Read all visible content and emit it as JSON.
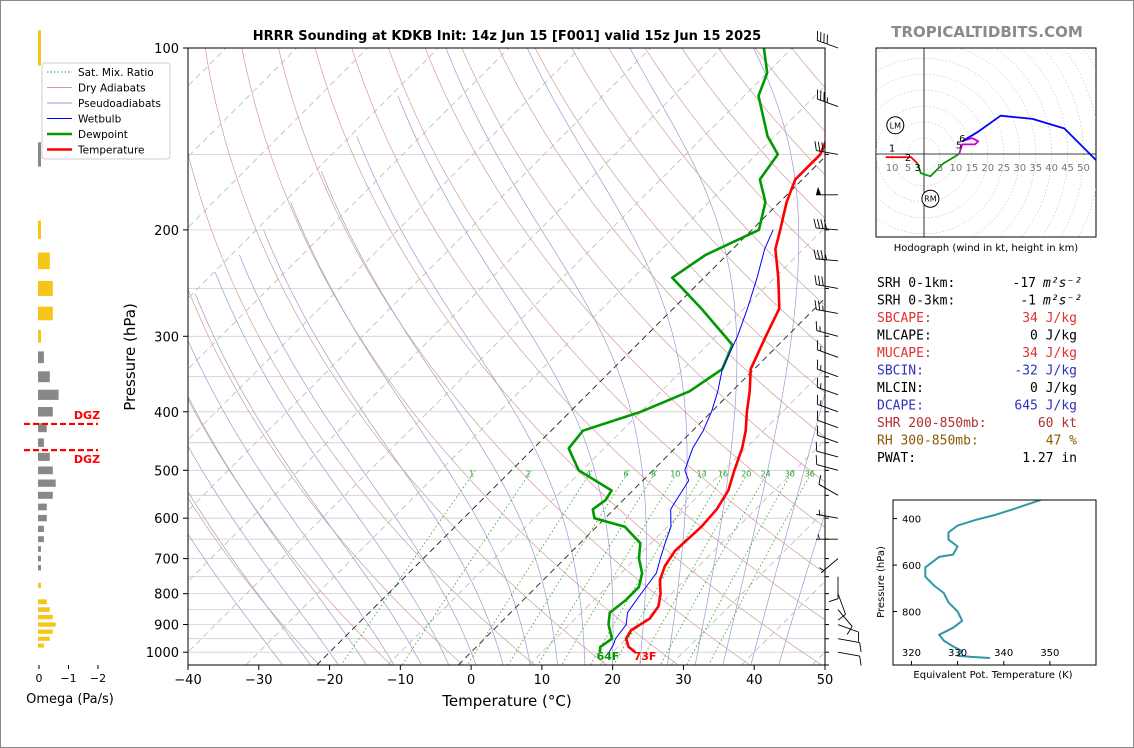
{
  "title": "HRRR Sounding at KDKB Init: 14z Jun 15 [F001] valid 15z Jun 15 2025",
  "brand": "TROPICALTIDBITS.COM",
  "chart_data": [
    {
      "type": "line",
      "name": "skewt",
      "xlabel": "Temperature (°C)",
      "ylabel": "Pressure (hPa)",
      "xlim": [
        -40,
        50
      ],
      "ylim": [
        1050,
        100
      ],
      "yscale": "log",
      "x_ticks": [
        -40,
        -30,
        -20,
        -10,
        0,
        10,
        20,
        30,
        40,
        50
      ],
      "x_tick_labels": [
        "−40",
        "−30",
        "−20",
        "−10",
        "0",
        "10",
        "20",
        "30",
        "40",
        "50"
      ],
      "y_ticks": [
        1000,
        900,
        800,
        700,
        600,
        500,
        400,
        300,
        200,
        100
      ],
      "y_tick_labels": [
        "1000",
        "900",
        "800",
        "700",
        "600",
        "500",
        "400",
        "300",
        "200",
        "100"
      ],
      "legend": {
        "placement": "upper-left",
        "entries": [
          {
            "label": "Sat. Mix. Ratio",
            "color": "#2ca02c",
            "style": "dotted"
          },
          {
            "label": "Dry Adiabats",
            "color": "#c8a0a0",
            "style": "solid"
          },
          {
            "label": "Pseudoadiabats",
            "color": "#a0a0c8",
            "style": "solid"
          },
          {
            "label": "Wetbulb",
            "color": "#0000ff",
            "style": "solid"
          },
          {
            "label": "Dewpoint",
            "color": "#009900",
            "style": "solid"
          },
          {
            "label": "Temperature",
            "color": "#ff0000",
            "style": "solid"
          }
        ]
      },
      "mixing_ratio_labels": [
        "1",
        "2",
        "4",
        "6",
        "8",
        "10",
        "13",
        "16",
        "20",
        "24",
        "30",
        "36"
      ],
      "series": [
        {
          "name": "Temperature",
          "color": "#ff0000",
          "points": [
            [
              23.2,
              1000
            ],
            [
              21.5,
              980
            ],
            [
              20.0,
              950
            ],
            [
              19.5,
              920
            ],
            [
              20.5,
              880
            ],
            [
              20.0,
              840
            ],
            [
              18.5,
              800
            ],
            [
              16.5,
              760
            ],
            [
              15.2,
              720
            ],
            [
              14.5,
              680
            ],
            [
              14.8,
              620
            ],
            [
              14.5,
              580
            ],
            [
              13.5,
              540
            ],
            [
              11.5,
              500
            ],
            [
              9.5,
              460
            ],
            [
              7.5,
              430
            ],
            [
              5.0,
              400
            ],
            [
              2.5,
              370
            ],
            [
              -0.5,
              340
            ],
            [
              -3.0,
              300
            ],
            [
              -5.0,
              270
            ],
            [
              -9.5,
              240
            ],
            [
              -14.0,
              215
            ],
            [
              -16.0,
              200
            ],
            [
              -19.0,
              180
            ],
            [
              -21.0,
              165
            ],
            [
              -21.0,
              150
            ],
            [
              -22.5,
              140
            ],
            [
              -26.0,
              125
            ],
            [
              -28.0,
              115
            ],
            [
              -31.0,
              100
            ]
          ]
        },
        {
          "name": "Dewpoint",
          "color": "#009900",
          "points": [
            [
              18.2,
              1000
            ],
            [
              17.5,
              980
            ],
            [
              18.0,
              950
            ],
            [
              15.5,
              900
            ],
            [
              14.0,
              860
            ],
            [
              14.5,
              820
            ],
            [
              14.5,
              780
            ],
            [
              13.0,
              740
            ],
            [
              10.5,
              700
            ],
            [
              8.5,
              660
            ],
            [
              4.0,
              620
            ],
            [
              -1.5,
              600
            ],
            [
              -3.0,
              580
            ],
            [
              -2.5,
              560
            ],
            [
              -3.0,
              540
            ],
            [
              -10.5,
              500
            ],
            [
              -15.0,
              460
            ],
            [
              -15.5,
              430
            ],
            [
              -10.0,
              400
            ],
            [
              -6.0,
              370
            ],
            [
              -4.5,
              340
            ],
            [
              -6.5,
              310
            ],
            [
              -16.0,
              270
            ],
            [
              -24.5,
              240
            ],
            [
              -23.0,
              220
            ],
            [
              -19.0,
              200
            ],
            [
              -22.0,
              180
            ],
            [
              -26.0,
              165
            ],
            [
              -27.0,
              150
            ],
            [
              -31.0,
              140
            ],
            [
              -38.0,
              120
            ],
            [
              -40.0,
              110
            ],
            [
              -44.0,
              100
            ]
          ]
        },
        {
          "name": "Wetbulb",
          "color": "#0000ff",
          "points": [
            [
              19.5,
              1000
            ],
            [
              19.0,
              970
            ],
            [
              18.5,
              950
            ],
            [
              18.0,
              900
            ],
            [
              16.5,
              860
            ],
            [
              16.0,
              820
            ],
            [
              15.5,
              780
            ],
            [
              15.0,
              740
            ],
            [
              13.5,
              700
            ],
            [
              12.0,
              660
            ],
            [
              10.5,
              620
            ],
            [
              8.0,
              580
            ],
            [
              7.5,
              560
            ],
            [
              6.5,
              520
            ],
            [
              4.5,
              500
            ],
            [
              2.5,
              460
            ],
            [
              1.5,
              430
            ],
            [
              0.0,
              400
            ],
            [
              -2.0,
              370
            ],
            [
              -4.5,
              340
            ],
            [
              -7.0,
              300
            ],
            [
              -9.5,
              270
            ],
            [
              -12.5,
              240
            ],
            [
              -15.5,
              215
            ],
            [
              -17.0,
              200
            ]
          ]
        }
      ],
      "surface_labels": [
        {
          "text": "64F",
          "color": "#009900"
        },
        {
          "text": "73F",
          "color": "#ff0000"
        }
      ]
    },
    {
      "type": "bar",
      "name": "omega",
      "xlabel": "Omega (Pa/s)",
      "x_ticks": [
        0,
        -1,
        -2
      ],
      "x_tick_labels": [
        "0",
        "−1",
        "−2"
      ],
      "dgz_label": "DGZ",
      "dgz_bounds_hpa": [
        419,
        463
      ],
      "bars_pa_s": [
        {
          "p": 100,
          "v": 0.1
        },
        {
          "p": 150,
          "v": -0.1
        },
        {
          "p": 200,
          "v": 0.1
        },
        {
          "p": 225,
          "v": 0.4
        },
        {
          "p": 250,
          "v": 0.5
        },
        {
          "p": 275,
          "v": 0.5
        },
        {
          "p": 300,
          "v": 0.1
        },
        {
          "p": 325,
          "v": -0.2
        },
        {
          "p": 350,
          "v": -0.4
        },
        {
          "p": 375,
          "v": -0.7
        },
        {
          "p": 400,
          "v": -0.5
        },
        {
          "p": 425,
          "v": -0.3
        },
        {
          "p": 450,
          "v": -0.2
        },
        {
          "p": 475,
          "v": -0.4
        },
        {
          "p": 500,
          "v": -0.5
        },
        {
          "p": 525,
          "v": -0.6
        },
        {
          "p": 550,
          "v": -0.5
        },
        {
          "p": 575,
          "v": -0.3
        },
        {
          "p": 600,
          "v": -0.3
        },
        {
          "p": 625,
          "v": -0.2
        },
        {
          "p": 650,
          "v": -0.2
        },
        {
          "p": 675,
          "v": -0.1
        },
        {
          "p": 700,
          "v": -0.1
        },
        {
          "p": 725,
          "v": -0.1
        },
        {
          "p": 775,
          "v": 0.1
        },
        {
          "p": 825,
          "v": 0.3
        },
        {
          "p": 850,
          "v": 0.4
        },
        {
          "p": 875,
          "v": 0.5
        },
        {
          "p": 900,
          "v": 0.6
        },
        {
          "p": 925,
          "v": 0.5
        },
        {
          "p": 950,
          "v": 0.4
        },
        {
          "p": 975,
          "v": 0.2
        }
      ]
    },
    {
      "type": "line",
      "name": "hodograph",
      "xlabel": "Hodograph (wind in kt, height in km)",
      "ring_labels": [
        "10",
        "5",
        "5",
        "10",
        "15",
        "20",
        "25",
        "30",
        "35",
        "40",
        "45",
        "50"
      ],
      "height_labels": [
        "1",
        "2",
        "3",
        "5",
        "6"
      ],
      "storm_motion_labels": [
        "LM",
        "RM"
      ],
      "segments": [
        {
          "color": "#ff0000",
          "points": [
            [
              -12,
              -1
            ],
            [
              -7,
              -1
            ],
            [
              -4,
              -1
            ],
            [
              -2,
              -3
            ]
          ]
        },
        {
          "color": "#009900",
          "points": [
            [
              -2,
              -3
            ],
            [
              -1,
              -6
            ],
            [
              2,
              -7
            ],
            [
              6,
              -3
            ],
            [
              11,
              0
            ]
          ]
        },
        {
          "color": "#cc00cc",
          "points": [
            [
              11,
              0
            ],
            [
              12,
              3
            ],
            [
              16,
              3
            ],
            [
              17,
              4
            ],
            [
              15,
              5
            ],
            [
              12,
              4
            ]
          ]
        },
        {
          "color": "#0000ff",
          "points": [
            [
              12,
              4
            ],
            [
              17,
              7
            ],
            [
              24,
              12
            ],
            [
              34,
              11
            ],
            [
              44,
              8
            ],
            [
              54,
              -2
            ]
          ]
        }
      ]
    },
    {
      "type": "line",
      "name": "theta-e",
      "xlabel": "Equivalent Pot. Temperature (K)",
      "ylabel": "Pressure (hPa)",
      "x_ticks": [
        320,
        330,
        340,
        350
      ],
      "x_tick_labels": [
        "320",
        "330",
        "340",
        "350"
      ],
      "y_ticks": [
        400,
        600,
        800
      ],
      "y_tick_labels": [
        "400",
        "600",
        "800"
      ],
      "xlim": [
        316,
        360
      ],
      "ylim": [
        1030,
        320
      ],
      "series": [
        {
          "color": "#2f97a8",
          "points": [
            [
              337,
              1000
            ],
            [
              333,
              995
            ],
            [
              330,
              990
            ],
            [
              331,
              970
            ],
            [
              329,
              950
            ],
            [
              327,
              925
            ],
            [
              326,
              900
            ],
            [
              329,
              870
            ],
            [
              331,
              840
            ],
            [
              330,
              800
            ],
            [
              328,
              760
            ],
            [
              327,
              720
            ],
            [
              325,
              690
            ],
            [
              323,
              650
            ],
            [
              323,
              610
            ],
            [
              325,
              580
            ],
            [
              326,
              565
            ],
            [
              329,
              555
            ],
            [
              330,
              520
            ],
            [
              328,
              490
            ],
            [
              328,
              460
            ],
            [
              330,
              430
            ],
            [
              334,
              405
            ],
            [
              338,
              385
            ],
            [
              342,
              360
            ],
            [
              345,
              340
            ],
            [
              348,
              320
            ]
          ]
        }
      ]
    }
  ],
  "indices": [
    {
      "label": "SRH 0-1km:",
      "value": "-17",
      "unit": "m²s⁻²",
      "color": "#000000"
    },
    {
      "label": "SRH 0-3km:",
      "value": "-1",
      "unit": "m²s⁻²",
      "color": "#000000"
    },
    {
      "label": "SBCAPE:",
      "value": "34 J/kg",
      "unit": "",
      "color": "#e03030"
    },
    {
      "label": "MLCAPE:",
      "value": "0 J/kg",
      "unit": "",
      "color": "#000000"
    },
    {
      "label": "MUCAPE:",
      "value": "34 J/kg",
      "unit": "",
      "color": "#e03030"
    },
    {
      "label": "SBCIN:",
      "value": "-32 J/kg",
      "unit": "",
      "color": "#3030c0"
    },
    {
      "label": "MLCIN:",
      "value": "0 J/kg",
      "unit": "",
      "color": "#000000"
    },
    {
      "label": "DCAPE:",
      "value": "645 J/kg",
      "unit": "",
      "color": "#3030c0"
    },
    {
      "label": "SHR 200-850mb:",
      "value": "60 kt",
      "unit": "",
      "color": "#b03030"
    },
    {
      "label": "RH 300-850mb:",
      "value": "47 %",
      "unit": "",
      "color": "#8a5a00"
    },
    {
      "label": "PWAT:",
      "value": "1.27 in",
      "unit": "",
      "color": "#000000"
    }
  ],
  "wind_barbs": [
    {
      "p": 100,
      "dir": 290,
      "kt": 40
    },
    {
      "p": 125,
      "dir": 290,
      "kt": 35
    },
    {
      "p": 150,
      "dir": 280,
      "kt": 30
    },
    {
      "p": 175,
      "dir": 270,
      "kt": 50
    },
    {
      "p": 200,
      "dir": 275,
      "kt": 40
    },
    {
      "p": 225,
      "dir": 275,
      "kt": 35
    },
    {
      "p": 250,
      "dir": 280,
      "kt": 30
    },
    {
      "p": 275,
      "dir": 280,
      "kt": 25
    },
    {
      "p": 300,
      "dir": 285,
      "kt": 15
    },
    {
      "p": 325,
      "dir": 290,
      "kt": 15
    },
    {
      "p": 350,
      "dir": 290,
      "kt": 15
    },
    {
      "p": 375,
      "dir": 290,
      "kt": 15
    },
    {
      "p": 400,
      "dir": 290,
      "kt": 15
    },
    {
      "p": 425,
      "dir": 290,
      "kt": 10
    },
    {
      "p": 450,
      "dir": 290,
      "kt": 10
    },
    {
      "p": 475,
      "dir": 285,
      "kt": 10
    },
    {
      "p": 500,
      "dir": 285,
      "kt": 10
    },
    {
      "p": 550,
      "dir": 300,
      "kt": 10
    },
    {
      "p": 600,
      "dir": 280,
      "kt": 5
    },
    {
      "p": 650,
      "dir": 270,
      "kt": 5
    },
    {
      "p": 700,
      "dir": 230,
      "kt": 5
    },
    {
      "p": 750,
      "dir": 180,
      "kt": 10
    },
    {
      "p": 800,
      "dir": 160,
      "kt": 10
    },
    {
      "p": 850,
      "dir": 140,
      "kt": 10
    },
    {
      "p": 900,
      "dir": 110,
      "kt": 10
    },
    {
      "p": 950,
      "dir": 100,
      "kt": 10
    },
    {
      "p": 1000,
      "dir": 100,
      "kt": 10
    }
  ]
}
